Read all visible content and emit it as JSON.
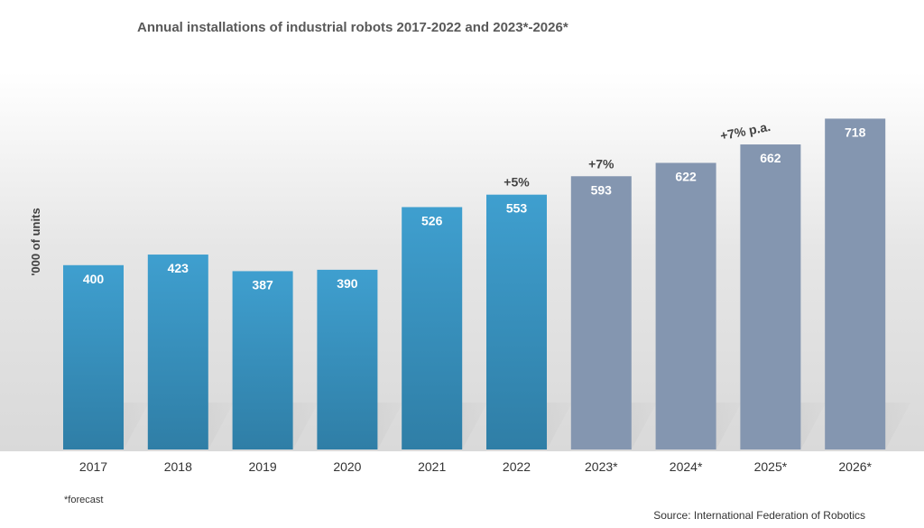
{
  "chart_data": {
    "type": "bar",
    "title": "Annual installations of industrial robots 2017-2022 and 2023*-2026*",
    "ylabel": "'000 of units",
    "xlabel": "",
    "categories": [
      "2017",
      "2018",
      "2019",
      "2020",
      "2021",
      "2022",
      "2023*",
      "2024*",
      "2025*",
      "2026*"
    ],
    "values": [
      400,
      423,
      387,
      390,
      526,
      553,
      593,
      622,
      662,
      718
    ],
    "forecast": [
      false,
      false,
      false,
      false,
      false,
      false,
      true,
      true,
      true,
      true
    ],
    "ylim": [
      0,
      760
    ],
    "grid": false,
    "legend": "none",
    "colors": {
      "actual": "#3a97c6",
      "actual_dark": "#2f7fa8",
      "forecast": "#8496b0"
    },
    "annotations": [
      {
        "text": "+5%",
        "category": "2022"
      },
      {
        "text": "+7%",
        "category": "2023*"
      },
      {
        "text": "+7% p.a.",
        "category": "2025*"
      }
    ],
    "footnote": "*forecast",
    "source": "Source: International Federation of Robotics"
  }
}
